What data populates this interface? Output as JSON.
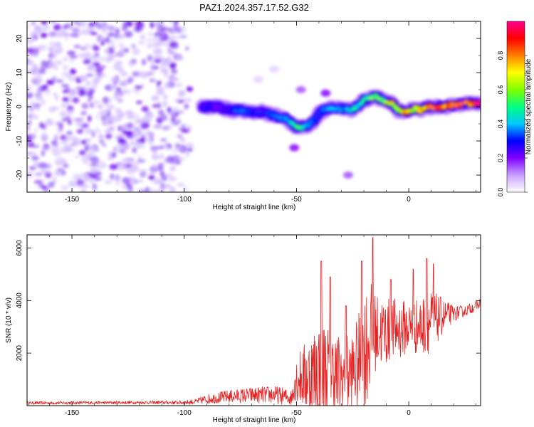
{
  "figure_title": "PAZ1.2024.357.17.52.G32",
  "chart_data": [
    {
      "type": "heatmap",
      "xlabel": "Height of straight line (km)",
      "ylabel": "Frequency (Hz)",
      "xlim": [
        -170,
        32
      ],
      "ylim": [
        -25,
        25
      ],
      "x_ticks": [
        -150,
        -100,
        -50,
        0
      ],
      "y_ticks": [
        -20,
        -10,
        0,
        10,
        20
      ],
      "noise_region_x": [
        -170,
        -95
      ],
      "colorbar": {
        "label": "Normalized spectral amplitude",
        "range": [
          0,
          1
        ],
        "ticks": [
          0.0,
          0.2,
          0.4,
          0.6,
          0.8
        ],
        "colors": [
          "#ffffff",
          "#c8a0ff",
          "#8000ff",
          "#0000ff",
          "#00c8ff",
          "#00ff80",
          "#80ff00",
          "#ffff00",
          "#ff8000",
          "#ff0000",
          "#ff0090"
        ]
      },
      "signal_track": {
        "x": [
          -92,
          -85,
          -80,
          -75,
          -70,
          -65,
          -60,
          -55,
          -52,
          -50,
          -48,
          -45,
          -42,
          -40,
          -38,
          -35,
          -30,
          -25,
          -20,
          -15,
          -12,
          -10,
          -7,
          -5,
          -2,
          0,
          3,
          5,
          8,
          10,
          15,
          20,
          25,
          32
        ],
        "frequency": [
          0,
          0,
          -1,
          -1,
          -1.5,
          -1.5,
          -2.5,
          -3.5,
          -5,
          -6,
          -6,
          -5.5,
          -4,
          -2,
          -1,
          -0.5,
          -0.5,
          -1,
          2,
          3,
          2,
          1.5,
          1,
          -1,
          -1.5,
          -1.5,
          -0.5,
          -1,
          0,
          0,
          0,
          0.5,
          1,
          1
        ],
        "amplitude": [
          0.3,
          0.25,
          0.3,
          0.35,
          0.3,
          0.3,
          0.35,
          0.4,
          0.45,
          0.6,
          0.5,
          0.4,
          0.35,
          0.3,
          0.35,
          0.4,
          0.4,
          0.45,
          0.5,
          0.6,
          0.55,
          0.65,
          0.7,
          0.6,
          0.75,
          0.85,
          0.7,
          0.75,
          0.8,
          0.9,
          0.9,
          0.95,
          0.98,
          1.0
        ]
      },
      "secondary_blobs": [
        {
          "x": -37,
          "frequency": 4,
          "amplitude": 0.2
        },
        {
          "x": -48,
          "frequency": 5,
          "amplitude": 0.15
        },
        {
          "x": -51,
          "frequency": -12,
          "amplitude": 0.2
        },
        {
          "x": -27,
          "frequency": -20,
          "amplitude": 0.15
        },
        {
          "x": -67,
          "frequency": 8,
          "amplitude": 0.05
        },
        {
          "x": -60,
          "frequency": 11,
          "amplitude": 0.05
        }
      ]
    },
    {
      "type": "line",
      "xlabel": "Height of straight line (km)",
      "ylabel": "SNR (10 * v/v)",
      "xlim": [
        -170,
        32
      ],
      "ylim": [
        0,
        6500
      ],
      "x_ticks": [
        -150,
        -100,
        -50,
        0
      ],
      "y_ticks": [
        2000,
        4000,
        6000
      ],
      "series_color": "#e82020",
      "envelope": {
        "x": [
          -170,
          -120,
          -100,
          -95,
          -90,
          -80,
          -70,
          -60,
          -52,
          -51,
          -45,
          -40,
          -35,
          -30,
          -25,
          -22,
          -18,
          -15,
          -10,
          -5,
          0,
          5,
          10,
          15,
          20,
          25,
          30,
          32
        ],
        "base": [
          100,
          120,
          120,
          150,
          250,
          350,
          400,
          420,
          300,
          1000,
          1100,
          1300,
          1300,
          1000,
          1300,
          1600,
          2500,
          2800,
          2800,
          2900,
          3000,
          3000,
          3200,
          3400,
          3500,
          3600,
          3800,
          3900
        ],
        "noise": [
          60,
          60,
          80,
          100,
          180,
          250,
          300,
          350,
          300,
          800,
          1500,
          2200,
          1800,
          1700,
          1500,
          2000,
          2500,
          1500,
          1300,
          1200,
          1000,
          1100,
          1200,
          700,
          300,
          200,
          200,
          200
        ]
      },
      "spikes": [
        {
          "x": -39,
          "value": 5500
        },
        {
          "x": -35,
          "value": 4900
        },
        {
          "x": -28,
          "value": 3800
        },
        {
          "x": -21,
          "value": 5500
        },
        {
          "x": -16,
          "value": 6400
        },
        {
          "x": -8,
          "value": 4800
        },
        {
          "x": 2,
          "value": 5200
        },
        {
          "x": 8,
          "value": 5600
        },
        {
          "x": 11,
          "value": 5400
        }
      ]
    }
  ]
}
